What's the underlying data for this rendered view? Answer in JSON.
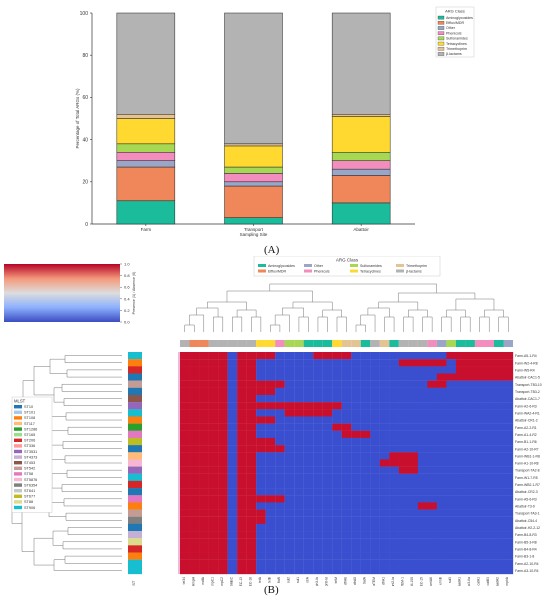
{
  "figure": {
    "panel_a_label": "(A)",
    "panel_b_label": "(B)"
  },
  "chart_data": [
    {
      "type": "bar",
      "stacked": true,
      "categories": [
        "Farm",
        "Transport",
        "Abattoir"
      ],
      "xlabel": "Sampling Site",
      "ylabel": "Percentage of Total ARGs (%)",
      "ylim": [
        0,
        100
      ],
      "yticks": [
        0,
        20,
        40,
        60,
        80,
        100
      ],
      "legend_title": "ARG Class",
      "legend_position": "top-right",
      "series": [
        {
          "name": "Aminoglycosides",
          "color": "#1abc9c",
          "values": [
            11,
            3,
            10
          ]
        },
        {
          "name": "Efflux/MDR",
          "color": "#f0875a",
          "values": [
            16,
            15,
            13
          ]
        },
        {
          "name": "Other",
          "color": "#9aa6c8",
          "values": [
            3,
            2,
            3
          ]
        },
        {
          "name": "Phenicols",
          "color": "#f28dbe",
          "values": [
            4,
            4,
            4
          ]
        },
        {
          "name": "Sulfonamides",
          "color": "#a6d854",
          "values": [
            4,
            3,
            4
          ]
        },
        {
          "name": "Tetracyclines",
          "color": "#ffd92f",
          "values": [
            12,
            10,
            17
          ]
        },
        {
          "name": "Trimethoprim",
          "color": "#e5c494",
          "values": [
            2,
            1,
            1
          ]
        },
        {
          "name": "β-lactams",
          "color": "#b3b3b3",
          "values": [
            48,
            62,
            48
          ]
        }
      ]
    },
    {
      "type": "heatmap",
      "colorbar_label": "Presence (1) / Absence (0)",
      "colorbar_ticks": [
        "1.0",
        "0.8",
        "0.6",
        "0.4",
        "0.2",
        "0.0"
      ],
      "arg_legend_title": "ARG Class",
      "arg_legend": [
        {
          "name": "Aminoglycosides",
          "color": "#1abc9c"
        },
        {
          "name": "Efflux/MDR",
          "color": "#f0875a"
        },
        {
          "name": "Other",
          "color": "#9aa6c8"
        },
        {
          "name": "Phenicols",
          "color": "#f28dbe"
        },
        {
          "name": "Sulfonamides",
          "color": "#a6d854"
        },
        {
          "name": "Tetracyclines",
          "color": "#ffd92f"
        },
        {
          "name": "Trimethoprim",
          "color": "#e5c494"
        },
        {
          "name": "β-lactams",
          "color": "#b3b3b3"
        }
      ],
      "mlst_title": "MLST",
      "mlst_axis_label": "MLST",
      "mlst_legend": [
        {
          "name": "ST10",
          "color": "#1f77b4"
        },
        {
          "name": "ST101",
          "color": "#aec7e8"
        },
        {
          "name": "ST108",
          "color": "#ff7f0e"
        },
        {
          "name": "ST117",
          "color": "#ffbb78"
        },
        {
          "name": "ST1286",
          "color": "#2ca02c"
        },
        {
          "name": "ST165",
          "color": "#98df8a"
        },
        {
          "name": "ST206",
          "color": "#d62728"
        },
        {
          "name": "ST336",
          "color": "#ff9896"
        },
        {
          "name": "ST3531",
          "color": "#9467bd"
        },
        {
          "name": "ST4373",
          "color": "#c5b0d5"
        },
        {
          "name": "ST453",
          "color": "#8c564b"
        },
        {
          "name": "ST542",
          "color": "#c49c94"
        },
        {
          "name": "ST58",
          "color": "#e377c2"
        },
        {
          "name": "ST5876",
          "color": "#f7b6d2"
        },
        {
          "name": "ST6354",
          "color": "#7f7f7f"
        },
        {
          "name": "ST641",
          "color": "#c7c7c7"
        },
        {
          "name": "ST677",
          "color": "#bcbd22"
        },
        {
          "name": "ST88",
          "color": "#dbdb8d"
        },
        {
          "name": "ST906",
          "color": "#17becf"
        }
      ],
      "rows": [
        "Farm-A5-1-R4",
        "Farm-W2-4-R8",
        "Farm-W5-R4",
        "Abattoir-CAC1-5",
        "Transport-TB3-10",
        "Transport-TB3-2",
        "Abattoir-CAC1-7",
        "Farm-A2-6-R3",
        "Farm-WA2-4-R1",
        "Abattoir-CR1-2",
        "Farm-A2-2-R1",
        "Farm-A1-4-R2",
        "Farm-B1-1-R6",
        "Farm-A2-10-R7",
        "Farm-WB1-1-R8",
        "Farm-A1-10-R8",
        "Transport-TA2-8",
        "Farm-W1-7-R5",
        "Farm-WB2-1-R7",
        "Abattoir-CR2-3",
        "Farm-A5-6-R3",
        "Abattoir-T3-9",
        "Transport-TA3-1",
        "Abattoir-C54-4",
        "Abattoir-H2-2-12",
        "Farm-B4-8-R3",
        "Farm-B5-3-R8",
        "Farm-B4-8-R4",
        "Farm-B3-1-8",
        "Farm-A2-10-R4",
        "Farm-A3-10-R4"
      ],
      "columns": [
        "tet34",
        "blaAmpH",
        "mdfA",
        "blaAmpC1",
        "blaAmpC2",
        "blaEC",
        "blaEC-13",
        "blaEC-18",
        "tetA",
        "tetB",
        "floR",
        "sul2",
        "sul1",
        "strA",
        "aph3-Ib",
        "aph6-Id",
        "tetM",
        "dfrA8",
        "dfrA5",
        "SatA",
        "blaTEM",
        "dfrA1",
        "ant2-Ia",
        "blaTEM-1",
        "blaTEM-105",
        "blaEC-15",
        "cmlA6",
        "ermB",
        "sul3",
        "aadA1",
        "aac3-IIa",
        "catA1",
        "catB3",
        "aadA2",
        "mphA"
      ],
      "column_classes": [
        8,
        2,
        2,
        8,
        8,
        8,
        8,
        8,
        6,
        6,
        4,
        5,
        5,
        1,
        1,
        1,
        6,
        7,
        7,
        1,
        8,
        7,
        1,
        8,
        8,
        8,
        4,
        3,
        5,
        1,
        1,
        4,
        4,
        1,
        3
      ],
      "row_mlst": [
        19,
        3,
        7,
        1,
        12,
        1,
        11,
        9,
        19,
        3,
        5,
        13,
        17,
        1,
        4,
        14,
        9,
        19,
        7,
        1,
        13,
        3,
        12,
        15,
        1,
        10,
        18,
        7,
        3,
        19,
        19
      ],
      "present": [
        [
          0,
          1,
          2,
          3,
          4,
          6,
          7,
          8,
          9,
          14,
          15,
          16,
          17,
          28,
          29,
          30,
          31,
          32,
          33,
          34
        ],
        [
          0,
          1,
          2,
          3,
          4,
          6,
          7,
          23,
          24,
          25,
          26,
          27,
          29,
          30,
          31,
          32,
          33,
          34
        ],
        [
          0,
          1,
          2,
          3,
          4,
          6,
          7,
          29,
          30,
          31,
          32,
          33,
          34
        ],
        [
          0,
          1,
          2,
          3,
          4,
          6,
          7,
          27,
          28,
          29,
          30,
          31,
          32,
          33,
          34
        ],
        [
          0,
          1,
          2,
          3,
          4,
          6,
          7,
          8,
          9,
          10,
          26,
          27
        ],
        [
          0,
          1,
          2,
          3,
          4,
          6,
          7,
          8,
          9
        ],
        [
          0,
          1,
          2,
          3,
          4,
          6,
          7
        ],
        [
          0,
          1,
          2,
          3,
          4,
          6,
          7,
          8,
          9,
          10,
          11,
          12,
          13,
          14,
          15,
          16
        ],
        [
          0,
          1,
          2,
          3,
          4,
          6,
          7,
          11,
          12,
          13,
          14,
          15
        ],
        [
          0,
          1,
          2,
          3,
          4,
          6,
          7,
          8,
          9
        ],
        [
          0,
          1,
          2,
          3,
          4,
          6,
          7,
          16,
          17
        ],
        [
          0,
          1,
          2,
          3,
          4,
          6,
          7,
          17,
          18,
          19
        ],
        [
          0,
          1,
          2,
          3,
          4,
          6,
          7,
          8,
          9
        ],
        [
          0,
          1,
          2,
          3,
          4,
          6,
          7,
          8,
          9,
          10
        ],
        [
          0,
          1,
          2,
          3,
          4,
          6,
          7,
          22,
          23,
          24
        ],
        [
          0,
          1,
          2,
          3,
          4,
          6,
          7,
          21,
          22,
          23,
          24
        ],
        [
          0,
          1,
          2,
          3,
          4,
          6,
          7,
          23,
          24
        ],
        [
          0,
          1,
          2,
          3,
          4,
          6,
          7
        ],
        [
          0,
          1,
          2,
          3,
          4,
          6,
          7
        ],
        [
          0,
          1,
          2,
          3,
          4,
          6,
          7
        ],
        [
          0,
          1,
          2,
          3,
          4,
          6,
          7,
          8,
          9,
          10
        ],
        [
          0,
          1,
          2,
          3,
          4,
          6,
          7,
          25,
          26
        ],
        [
          0,
          1,
          2,
          3,
          4,
          6,
          7,
          8
        ],
        [
          0,
          1,
          2,
          3,
          4,
          6,
          7,
          8
        ],
        [
          0,
          1,
          2,
          3,
          4,
          6,
          7
        ],
        [
          0,
          1,
          2,
          3,
          4,
          6,
          7
        ],
        [
          0,
          1,
          2,
          3,
          4,
          6,
          7
        ],
        [
          0,
          1,
          2,
          3,
          4,
          6,
          7
        ],
        [
          0,
          1,
          2,
          3,
          4,
          6,
          7
        ],
        [
          0,
          1,
          2,
          3,
          4,
          6,
          7
        ],
        [
          0,
          1,
          2,
          3,
          4,
          6,
          7
        ]
      ],
      "present_color": "#c8102e",
      "absent_color": "#3a4fcf"
    }
  ]
}
